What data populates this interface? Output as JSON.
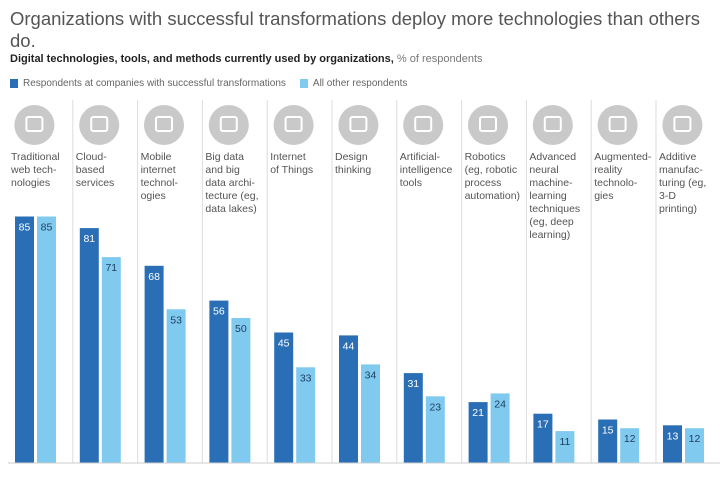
{
  "title": "Organizations with successful transformations deploy more technologies than others do.",
  "chart_data": {
    "type": "bar",
    "title": "Digital technologies, tools, and methods currently used by organizations,",
    "unit": "% of respondents",
    "categories": [
      "Traditional\nweb tech-\nnologies",
      "Cloud-\nbased\nservices",
      "Mobile\ninternet\ntechnol-\nogies",
      "Big data\nand big\ndata archi-\ntecture (eg,\ndata lakes)",
      "Internet\nof Things",
      "Design\nthinking",
      "Artificial-\nintelligence\ntools",
      "Robotics\n(eg, robotic\nprocess\nautomation)",
      "Advanced\nneural\nmachine-\nlearning\ntechniques\n(eg, deep\nlearning)",
      "Augmented-\nreality\ntechnolo-\ngies",
      "Additive\nmanufac-\nturing (eg,\n3-D\nprinting)"
    ],
    "icons": [
      "web-browser-icon",
      "cloud-icon",
      "smartphone-icon",
      "server-stack-icon",
      "lamp-icon",
      "lightbulb-head-icon",
      "brain-icon",
      "robot-arm-icon",
      "neural-brain-icon",
      "cube-icon",
      "3d-printer-icon"
    ],
    "series": [
      {
        "name": "Respondents at companies with successful transformations",
        "color": "#2a6fb5",
        "values": [
          85,
          81,
          68,
          56,
          45,
          44,
          31,
          21,
          17,
          15,
          13
        ]
      },
      {
        "name": "All other respondents",
        "color": "#80caf0",
        "values": [
          85,
          71,
          53,
          50,
          33,
          34,
          23,
          24,
          11,
          12,
          12
        ]
      }
    ],
    "ylim": [
      0,
      100
    ],
    "legend_position": "top-left",
    "grid": false
  }
}
